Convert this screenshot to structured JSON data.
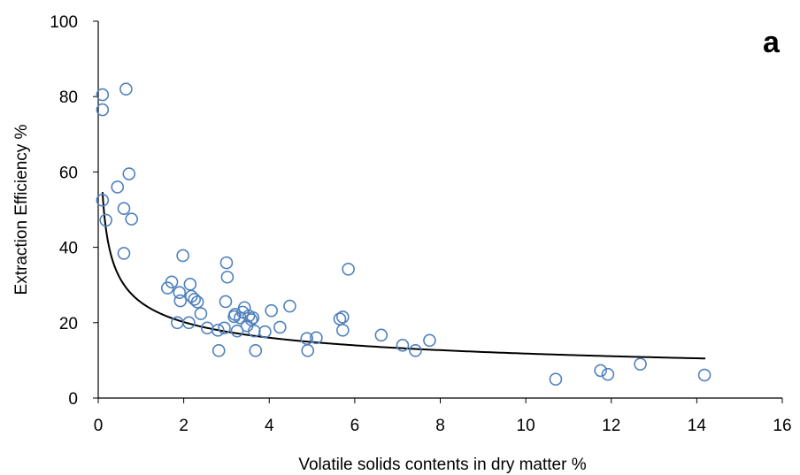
{
  "chart_data": {
    "type": "scatter",
    "panel_label": "a",
    "xlabel": "Volatile solids contents in dry matter %",
    "ylabel": "Extraction Efficiency %",
    "xlim": [
      0,
      16
    ],
    "ylim": [
      0,
      100
    ],
    "xticks": [
      0,
      2,
      4,
      6,
      8,
      10,
      12,
      14,
      16
    ],
    "yticks": [
      0,
      20,
      40,
      60,
      80,
      100
    ],
    "grid": false,
    "legend": "none",
    "marker_color": "#4f81bd",
    "line_color": "#000000",
    "series": [
      {
        "type": "scatter",
        "points": [
          [
            0.1,
            80.5
          ],
          [
            0.1,
            76.5
          ],
          [
            0.65,
            82.0
          ],
          [
            0.1,
            52.5
          ],
          [
            0.18,
            47.2
          ],
          [
            0.45,
            56.0
          ],
          [
            0.6,
            50.3
          ],
          [
            0.72,
            59.5
          ],
          [
            0.78,
            47.5
          ],
          [
            0.6,
            38.4
          ],
          [
            1.62,
            29.2
          ],
          [
            1.72,
            30.8
          ],
          [
            1.85,
            20.0
          ],
          [
            1.9,
            28.0
          ],
          [
            1.92,
            25.8
          ],
          [
            1.98,
            37.8
          ],
          [
            2.12,
            20.0
          ],
          [
            2.15,
            30.2
          ],
          [
            2.18,
            27.0
          ],
          [
            2.25,
            26.2
          ],
          [
            2.32,
            25.5
          ],
          [
            2.4,
            22.4
          ],
          [
            2.55,
            18.6
          ],
          [
            2.8,
            18.0
          ],
          [
            2.82,
            12.6
          ],
          [
            2.95,
            18.6
          ],
          [
            2.98,
            25.6
          ],
          [
            3.0,
            35.9
          ],
          [
            3.02,
            32.1
          ],
          [
            3.18,
            21.6
          ],
          [
            3.2,
            22.2
          ],
          [
            3.25,
            17.8
          ],
          [
            3.32,
            21.3
          ],
          [
            3.38,
            22.8
          ],
          [
            3.42,
            24.0
          ],
          [
            3.48,
            19.2
          ],
          [
            3.52,
            21.8
          ],
          [
            3.58,
            20.8
          ],
          [
            3.62,
            21.3
          ],
          [
            3.65,
            17.8
          ],
          [
            3.68,
            12.6
          ],
          [
            3.9,
            17.6
          ],
          [
            4.05,
            23.2
          ],
          [
            4.25,
            18.8
          ],
          [
            4.48,
            24.4
          ],
          [
            4.88,
            15.8
          ],
          [
            4.9,
            12.6
          ],
          [
            5.1,
            16.0
          ],
          [
            5.65,
            21.0
          ],
          [
            5.72,
            21.5
          ],
          [
            5.72,
            18.0
          ],
          [
            5.85,
            34.2
          ],
          [
            6.62,
            16.7
          ],
          [
            7.12,
            14.0
          ],
          [
            7.42,
            12.6
          ],
          [
            7.75,
            15.3
          ],
          [
            10.7,
            5.0
          ],
          [
            11.75,
            7.3
          ],
          [
            11.92,
            6.3
          ],
          [
            12.68,
            9.0
          ],
          [
            14.18,
            6.1
          ]
        ]
      },
      {
        "type": "line",
        "fit": "power",
        "x_range": [
          0.1,
          14.2
        ],
        "values": [
          [
            0.1,
            54.5
          ],
          [
            1,
            25.4
          ],
          [
            2,
            20.2
          ],
          [
            4,
            15.9
          ],
          [
            6,
            13.9
          ],
          [
            8,
            12.6
          ],
          [
            10,
            11.8
          ],
          [
            12,
            11.1
          ],
          [
            14.2,
            10.5
          ]
        ]
      }
    ]
  }
}
